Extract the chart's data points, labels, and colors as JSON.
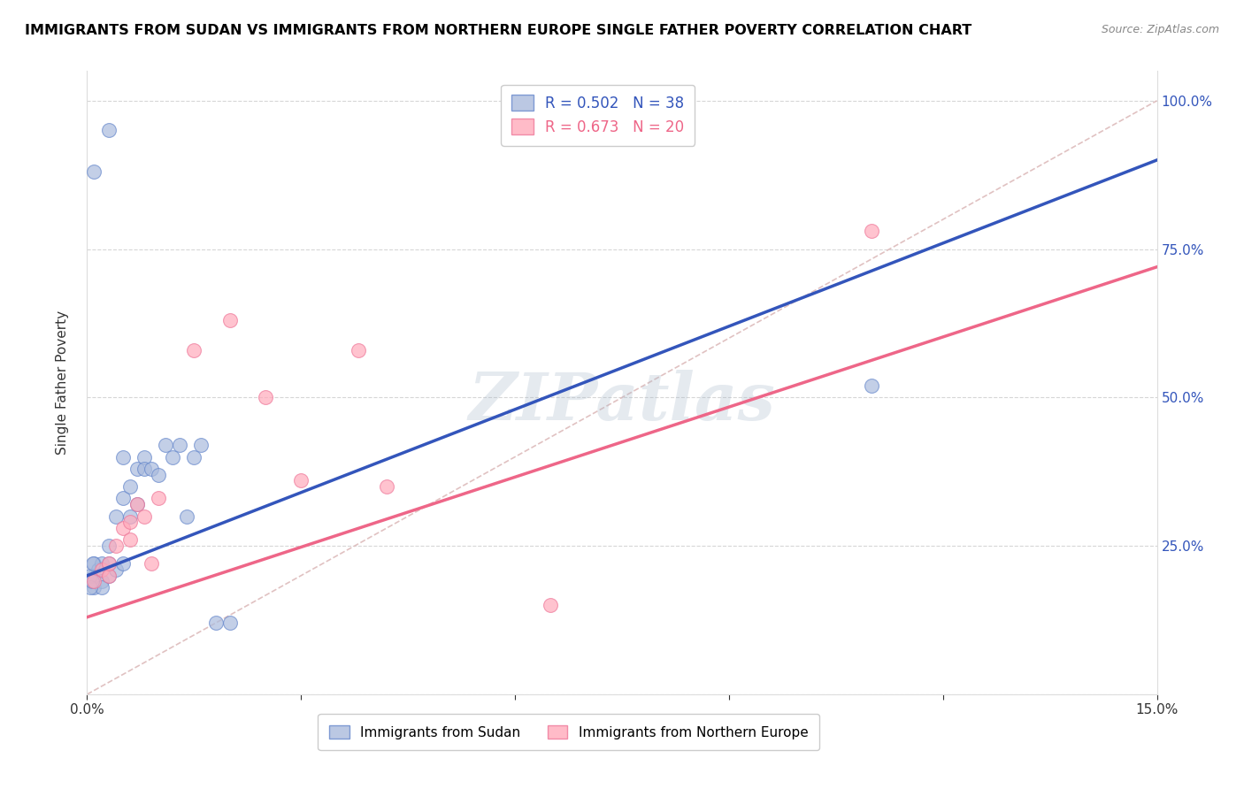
{
  "title": "IMMIGRANTS FROM SUDAN VS IMMIGRANTS FROM NORTHERN EUROPE SINGLE FATHER POVERTY CORRELATION CHART",
  "source": "Source: ZipAtlas.com",
  "ylabel": "Single Father Poverty",
  "legend_label_blue": "Immigrants from Sudan",
  "legend_label_pink": "Immigrants from Northern Europe",
  "r_blue": "R = 0.502",
  "n_blue": "N = 38",
  "r_pink": "R = 0.673",
  "n_pink": "N = 20",
  "xlim": [
    0.0,
    0.15
  ],
  "ylim": [
    0.0,
    1.05
  ],
  "y_ticks": [
    0.0,
    0.25,
    0.5,
    0.75,
    1.0
  ],
  "y_tick_labels_right": [
    "",
    "25.0%",
    "50.0%",
    "75.0%",
    "100.0%"
  ],
  "x_ticks": [
    0.0,
    0.03,
    0.06,
    0.09,
    0.12,
    0.15
  ],
  "x_tick_labels": [
    "0.0%",
    "",
    "",
    "",
    "",
    "15.0%"
  ],
  "blue_scatter_color": "#AABBDD",
  "blue_scatter_edge": "#6688CC",
  "pink_scatter_color": "#FFAABB",
  "pink_scatter_edge": "#EE7799",
  "blue_line_color": "#3355BB",
  "pink_line_color": "#EE6688",
  "diagonal_color": "#DDBBBB",
  "watermark": "ZIPatlas",
  "watermark_color": "#AABBCC",
  "sudan_x": [
    0.001,
    0.001,
    0.001,
    0.0015,
    0.002,
    0.002,
    0.002,
    0.003,
    0.003,
    0.003,
    0.004,
    0.004,
    0.005,
    0.005,
    0.005,
    0.006,
    0.006,
    0.007,
    0.007,
    0.008,
    0.008,
    0.009,
    0.01,
    0.011,
    0.012,
    0.013,
    0.014,
    0.015,
    0.016,
    0.018,
    0.02,
    0.001,
    0.003,
    0.11,
    0.0005,
    0.0005,
    0.0007,
    0.0008
  ],
  "sudan_y": [
    0.22,
    0.2,
    0.18,
    0.21,
    0.19,
    0.22,
    0.18,
    0.2,
    0.25,
    0.22,
    0.21,
    0.3,
    0.33,
    0.4,
    0.22,
    0.35,
    0.3,
    0.38,
    0.32,
    0.4,
    0.38,
    0.38,
    0.37,
    0.42,
    0.4,
    0.42,
    0.3,
    0.4,
    0.42,
    0.12,
    0.12,
    0.88,
    0.95,
    0.52,
    0.2,
    0.18,
    0.19,
    0.22
  ],
  "north_eu_x": [
    0.001,
    0.002,
    0.003,
    0.003,
    0.004,
    0.005,
    0.006,
    0.006,
    0.007,
    0.008,
    0.009,
    0.01,
    0.015,
    0.02,
    0.025,
    0.03,
    0.038,
    0.042,
    0.065,
    0.11
  ],
  "north_eu_y": [
    0.19,
    0.21,
    0.2,
    0.22,
    0.25,
    0.28,
    0.26,
    0.29,
    0.32,
    0.3,
    0.22,
    0.33,
    0.58,
    0.63,
    0.5,
    0.36,
    0.58,
    0.35,
    0.15,
    0.78
  ],
  "blue_line_x0": 0.0,
  "blue_line_y0": 0.2,
  "blue_line_x1": 0.15,
  "blue_line_y1": 0.9,
  "pink_line_x0": 0.0,
  "pink_line_y0": 0.13,
  "pink_line_x1": 0.15,
  "pink_line_y1": 0.72
}
